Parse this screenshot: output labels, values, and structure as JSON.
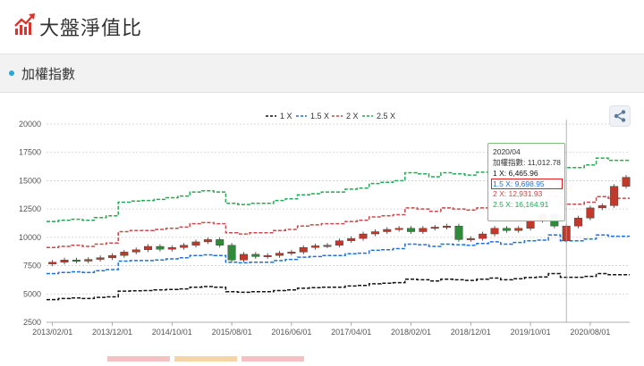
{
  "header": {
    "title": "大盤淨值比",
    "icon": "trending-up-icon"
  },
  "section": {
    "title": "加權指數"
  },
  "share": {
    "icon": "share-icon"
  },
  "colors": {
    "line_1x": "#111111",
    "line_15x": "#1e6fe0",
    "line_2x": "#c54a4a",
    "line_25x": "#22aa55",
    "candle_up": "#c0392b",
    "candle_down": "#2e8b3a",
    "accent": "#2aa7d8"
  },
  "tooltip": {
    "date": "2020/04",
    "index": "加權指數: 11,012.78",
    "x1": "1 X: 6,465.96",
    "x15": "1.5 X: 9,698.95",
    "x2": "2 X: 12,931.93",
    "x25": "2.5 X: 16,164.91"
  },
  "chart_data": {
    "type": "line",
    "x": [
      "2013/02",
      "2013/04",
      "2013/06",
      "2013/08",
      "2013/10",
      "2013/12",
      "2014/02",
      "2014/04",
      "2014/06",
      "2014/08",
      "2014/10",
      "2014/12",
      "2015/02",
      "2015/04",
      "2015/06",
      "2015/08",
      "2015/10",
      "2015/12",
      "2016/02",
      "2016/04",
      "2016/06",
      "2016/08",
      "2016/10",
      "2016/12",
      "2017/02",
      "2017/04",
      "2017/06",
      "2017/08",
      "2017/10",
      "2017/12",
      "2018/02",
      "2018/04",
      "2018/06",
      "2018/08",
      "2018/10",
      "2018/12",
      "2019/02",
      "2019/04",
      "2019/06",
      "2019/08",
      "2019/10",
      "2019/12",
      "2020/02",
      "2020/04",
      "2020/06",
      "2020/08",
      "2020/10",
      "2020/12",
      "2021/02"
    ],
    "x_tick_labels": [
      "2013/02/01",
      "2013/12/01",
      "2014/10/01",
      "2015/08/01",
      "2016/06/01",
      "2017/04/01",
      "2018/02/01",
      "2018/12/01",
      "2019/10/01",
      "2020/08/01"
    ],
    "y_ticks": [
      2500,
      5000,
      7500,
      10000,
      12500,
      15000,
      17500,
      20000
    ],
    "ylim": [
      2500,
      20000
    ],
    "series": [
      {
        "name": "1 X",
        "style": "dashed",
        "values": [
          4500,
          4600,
          4650,
          4600,
          4700,
          4750,
          5250,
          5280,
          5300,
          5350,
          5400,
          5450,
          5600,
          5650,
          5600,
          5200,
          5150,
          5200,
          5200,
          5300,
          5350,
          5500,
          5550,
          5600,
          5600,
          5700,
          5750,
          5900,
          5950,
          6000,
          6300,
          6250,
          6150,
          6300,
          6250,
          6200,
          6300,
          6400,
          6250,
          6350,
          6450,
          6500,
          6800,
          6470,
          6470,
          6550,
          6800,
          6700,
          6700
        ]
      },
      {
        "name": "1.5 X",
        "style": "dashed",
        "values": [
          6800,
          6900,
          6950,
          6900,
          7050,
          7150,
          7900,
          7950,
          7950,
          8000,
          8100,
          8200,
          8400,
          8450,
          8400,
          7800,
          7750,
          7800,
          7800,
          7950,
          8050,
          8250,
          8300,
          8400,
          8400,
          8550,
          8600,
          8850,
          8900,
          9000,
          9400,
          9350,
          9200,
          9400,
          9350,
          9300,
          9450,
          9600,
          9400,
          9550,
          9700,
          9750,
          10200,
          9700,
          9700,
          9850,
          10200,
          10100,
          10100
        ]
      },
      {
        "name": "2 X",
        "style": "dashed",
        "values": [
          9100,
          9200,
          9300,
          9200,
          9400,
          9500,
          10500,
          10600,
          10600,
          10700,
          10800,
          10900,
          11200,
          11300,
          11200,
          10400,
          10300,
          10400,
          10400,
          10600,
          10700,
          11000,
          11100,
          11200,
          11200,
          11400,
          11500,
          11800,
          11900,
          12000,
          12600,
          12500,
          12300,
          12600,
          12500,
          12400,
          12600,
          12800,
          12500,
          12700,
          12900,
          13000,
          13600,
          12930,
          12930,
          13100,
          13600,
          13450,
          13450
        ]
      },
      {
        "name": "2.5 X",
        "style": "dashed",
        "values": [
          11400,
          11500,
          11600,
          11500,
          11750,
          11900,
          13100,
          13200,
          13250,
          13350,
          13500,
          13650,
          14000,
          14100,
          14000,
          13000,
          12900,
          13000,
          13000,
          13250,
          13400,
          13750,
          13850,
          14000,
          14000,
          14250,
          14350,
          14750,
          14850,
          15000,
          15700,
          15600,
          15350,
          15700,
          15600,
          15500,
          15750,
          16000,
          15650,
          15900,
          16150,
          16250,
          17000,
          16160,
          16160,
          16400,
          17000,
          16800,
          16800
        ]
      }
    ],
    "candles": [
      {
        "x": "2013/02",
        "o": 7650,
        "c": 7800
      },
      {
        "x": "2013/04",
        "o": 7800,
        "c": 8000
      },
      {
        "x": "2013/06",
        "o": 8000,
        "c": 7900
      },
      {
        "x": "2013/08",
        "o": 7900,
        "c": 8050
      },
      {
        "x": "2013/10",
        "o": 8050,
        "c": 8200
      },
      {
        "x": "2013/12",
        "o": 8200,
        "c": 8400
      },
      {
        "x": "2014/02",
        "o": 8400,
        "c": 8700
      },
      {
        "x": "2014/04",
        "o": 8700,
        "c": 8900
      },
      {
        "x": "2014/06",
        "o": 8900,
        "c": 9200
      },
      {
        "x": "2014/08",
        "o": 9200,
        "c": 8950
      },
      {
        "x": "2014/10",
        "o": 8950,
        "c": 9100
      },
      {
        "x": "2014/12",
        "o": 9100,
        "c": 9300
      },
      {
        "x": "2015/02",
        "o": 9300,
        "c": 9600
      },
      {
        "x": "2015/04",
        "o": 9600,
        "c": 9800
      },
      {
        "x": "2015/06",
        "o": 9800,
        "c": 9300
      },
      {
        "x": "2015/08",
        "o": 9300,
        "c": 8000
      },
      {
        "x": "2015/10",
        "o": 8000,
        "c": 8500
      },
      {
        "x": "2015/12",
        "o": 8500,
        "c": 8300
      },
      {
        "x": "2016/02",
        "o": 8300,
        "c": 8400
      },
      {
        "x": "2016/04",
        "o": 8400,
        "c": 8600
      },
      {
        "x": "2016/06",
        "o": 8600,
        "c": 8700
      },
      {
        "x": "2016/08",
        "o": 8700,
        "c": 9100
      },
      {
        "x": "2016/10",
        "o": 9100,
        "c": 9250
      },
      {
        "x": "2016/12",
        "o": 9250,
        "c": 9300
      },
      {
        "x": "2017/02",
        "o": 9300,
        "c": 9700
      },
      {
        "x": "2017/04",
        "o": 9700,
        "c": 9900
      },
      {
        "x": "2017/06",
        "o": 9900,
        "c": 10300
      },
      {
        "x": "2017/08",
        "o": 10300,
        "c": 10500
      },
      {
        "x": "2017/10",
        "o": 10500,
        "c": 10700
      },
      {
        "x": "2017/12",
        "o": 10700,
        "c": 10800
      },
      {
        "x": "2018/02",
        "o": 10800,
        "c": 10500
      },
      {
        "x": "2018/04",
        "o": 10500,
        "c": 10800
      },
      {
        "x": "2018/06",
        "o": 10800,
        "c": 10900
      },
      {
        "x": "2018/08",
        "o": 10900,
        "c": 11000
      },
      {
        "x": "2018/10",
        "o": 11000,
        "c": 9800
      },
      {
        "x": "2018/12",
        "o": 9800,
        "c": 9900
      },
      {
        "x": "2019/02",
        "o": 9900,
        "c": 10300
      },
      {
        "x": "2019/04",
        "o": 10300,
        "c": 10800
      },
      {
        "x": "2019/06",
        "o": 10800,
        "c": 10600
      },
      {
        "x": "2019/08",
        "o": 10600,
        "c": 10800
      },
      {
        "x": "2019/10",
        "o": 10800,
        "c": 11500
      },
      {
        "x": "2019/12",
        "o": 11500,
        "c": 12000
      },
      {
        "x": "2020/02",
        "o": 12000,
        "c": 11000
      },
      {
        "x": "2020/04",
        "o": 9700,
        "c": 11000
      },
      {
        "x": "2020/06",
        "o": 11000,
        "c": 11700
      },
      {
        "x": "2020/08",
        "o": 11700,
        "c": 12600
      },
      {
        "x": "2020/10",
        "o": 12600,
        "c": 12800
      },
      {
        "x": "2020/12",
        "o": 12800,
        "c": 14500
      },
      {
        "x": "2021/02",
        "o": 14500,
        "c": 15300
      }
    ],
    "hover_x": "2020/04",
    "legend": {
      "position": "top-center",
      "entries": [
        "1 X",
        "1.5 X",
        "2 X",
        "2.5 X"
      ]
    },
    "grid": true
  }
}
